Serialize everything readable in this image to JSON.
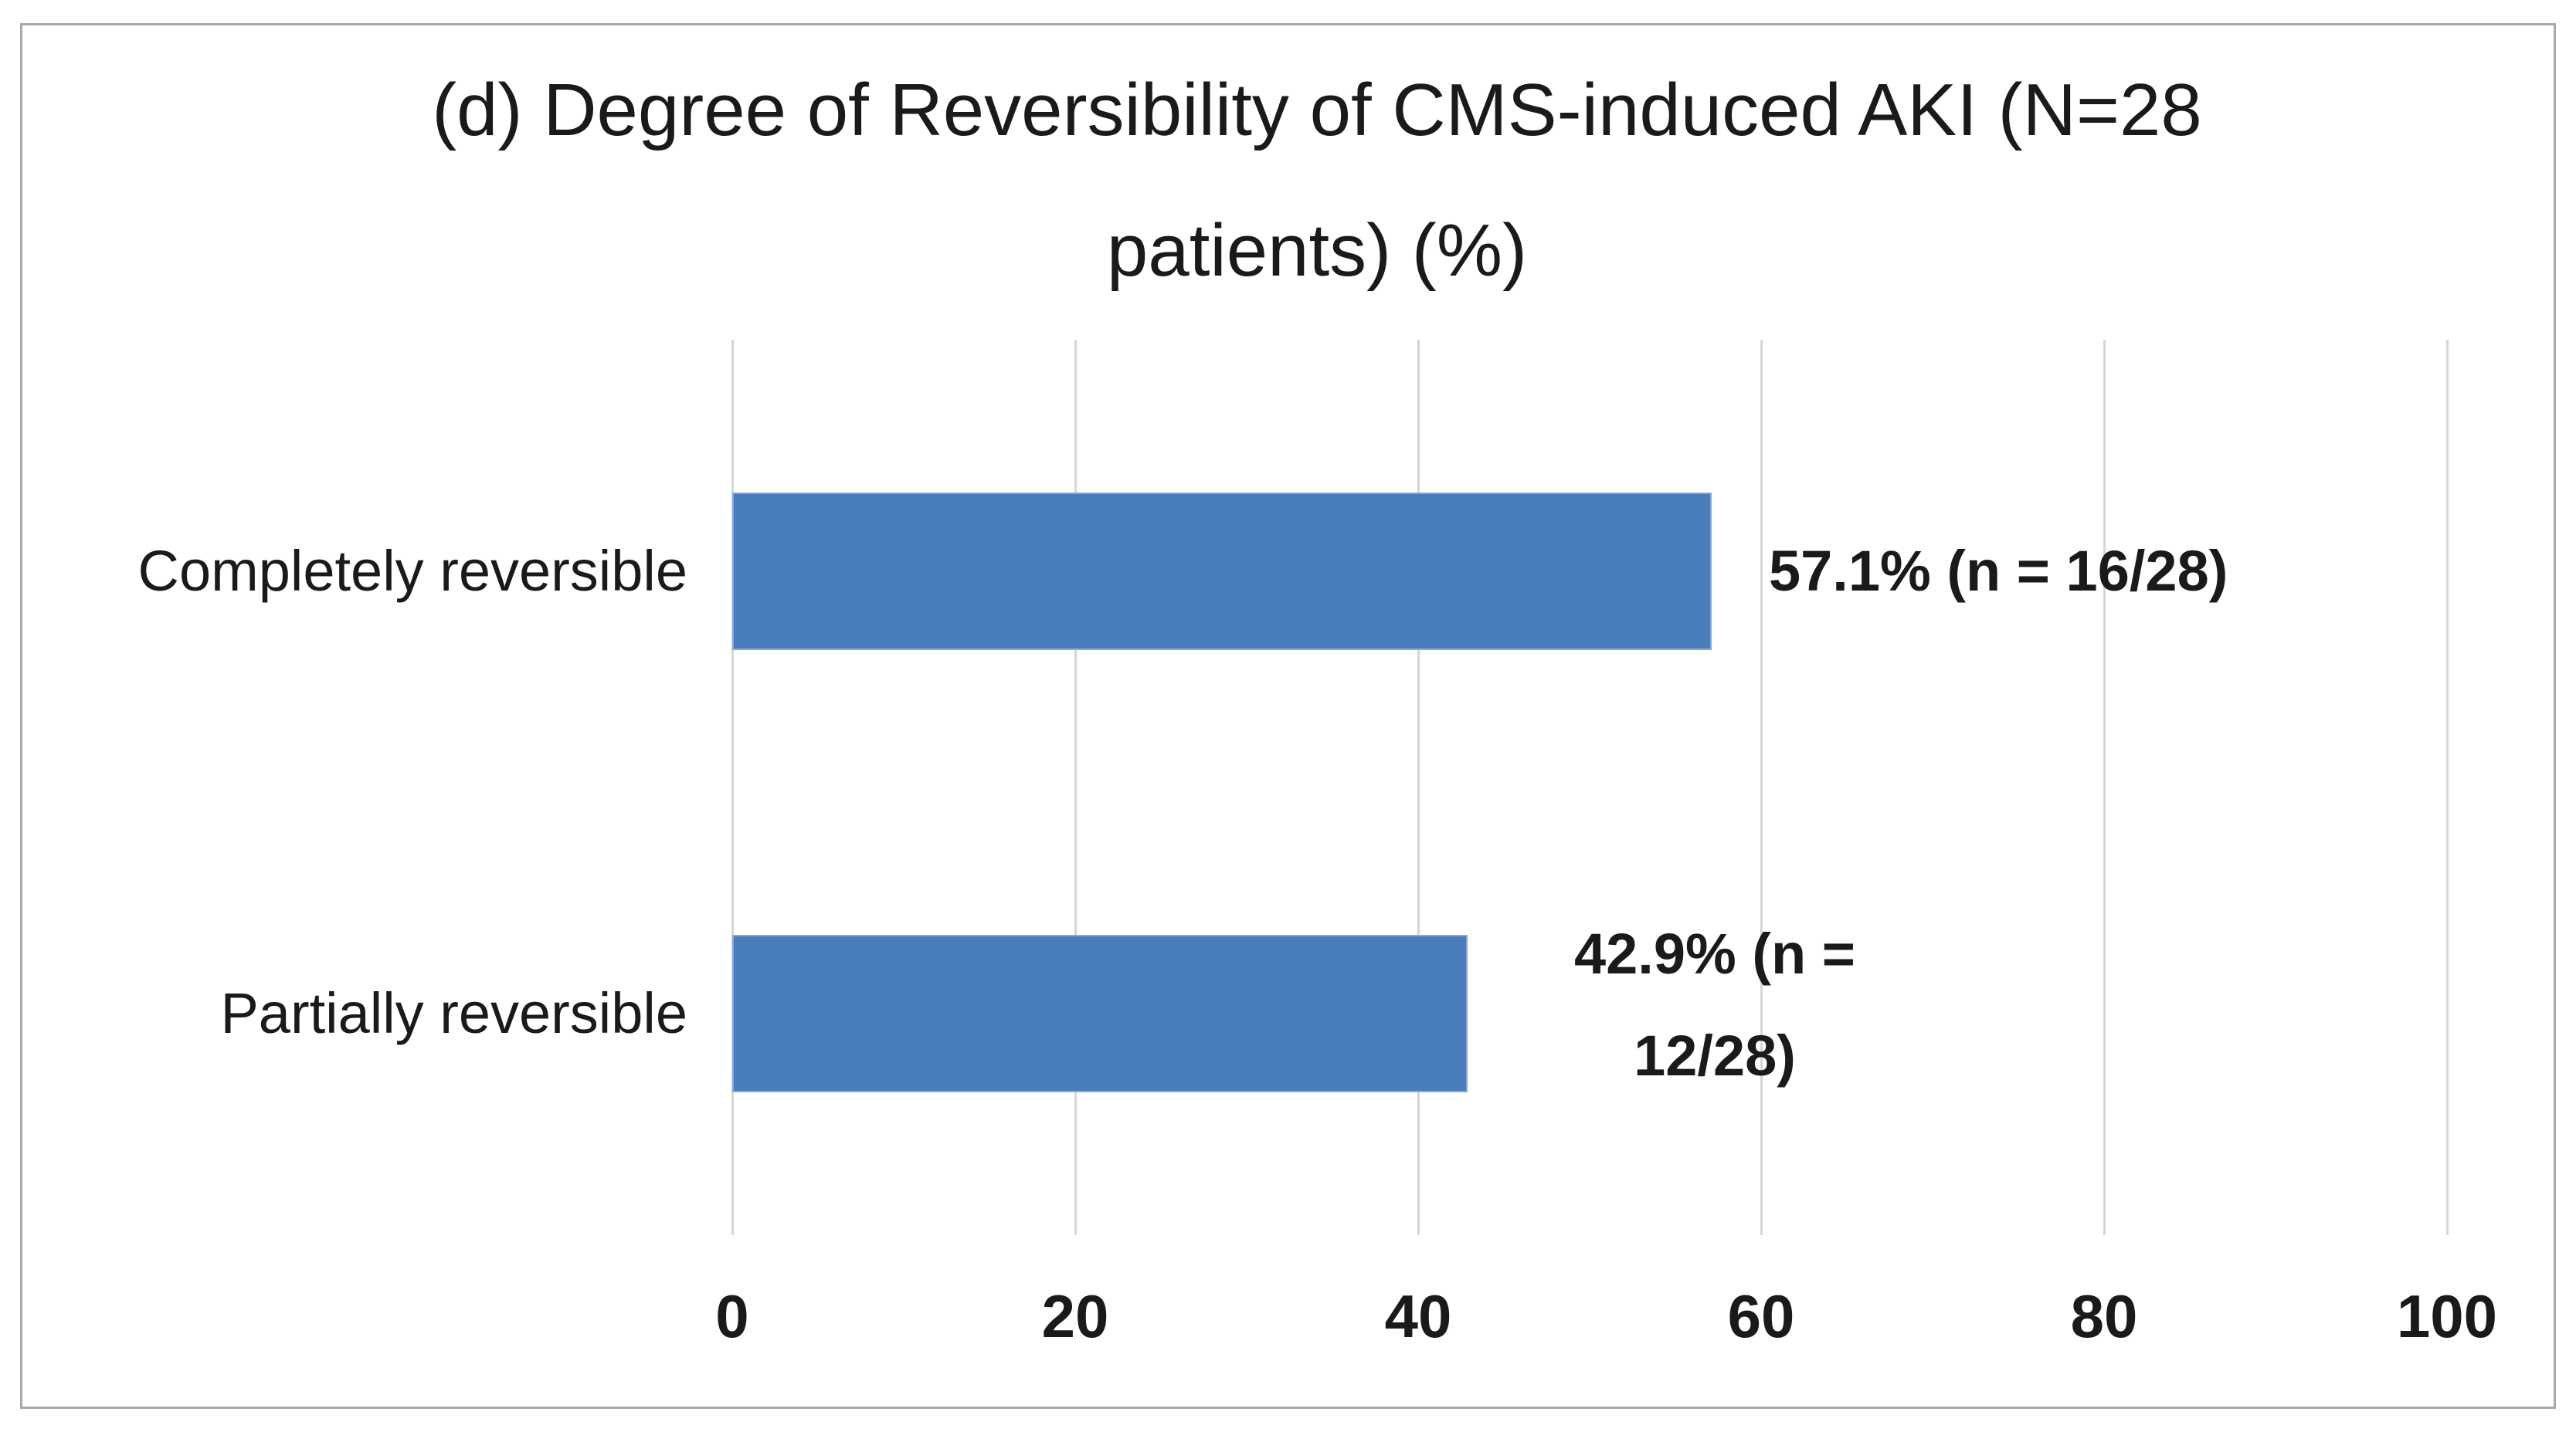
{
  "chart_data": {
    "type": "bar",
    "orientation": "horizontal",
    "title": "(d) Degree of Reversibility of CMS-induced AKI (N=28 patients) (%)",
    "title_lines": [
      "(d) Degree of Reversibility of CMS-induced AKI (N=28",
      "patients) (%)"
    ],
    "categories": [
      "Completely reversible",
      "Partially reversible"
    ],
    "values": [
      57.1,
      42.9
    ],
    "n_values": [
      16,
      12
    ],
    "N_total": 28,
    "data_labels": [
      [
        "57.1% (n = 16/28)"
      ],
      [
        "42.9% (n =",
        "12/28)"
      ]
    ],
    "x_ticks": [
      "0",
      "20",
      "40",
      "60",
      "80",
      "100"
    ],
    "xlim": [
      0,
      100
    ],
    "grid": true,
    "legend": false,
    "axis_line": false,
    "colors": {
      "bar_fill": "#487CBA",
      "bar_edge": "#83AAD9",
      "gridline": "#D6D6D6",
      "text": "#1A1A1A",
      "frame_border": "#A9A9A9",
      "background": "#FFFFFF"
    }
  }
}
